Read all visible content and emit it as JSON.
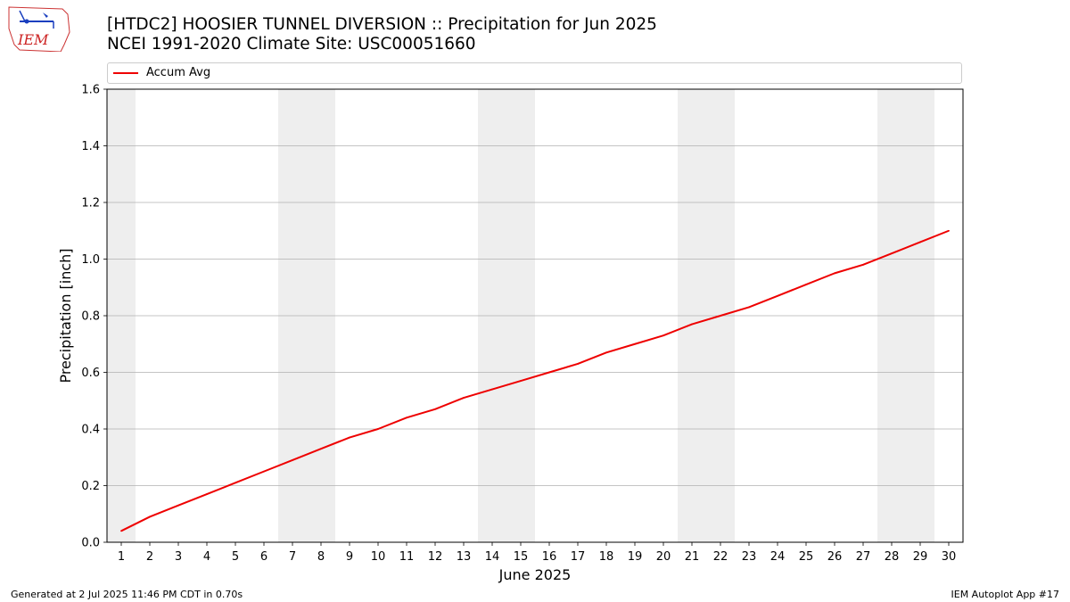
{
  "header": {
    "title_line1": "[HTDC2] HOOSIER TUNNEL DIVERSION :: Precipitation for Jun 2025",
    "title_line2": "NCEI 1991-2020 Climate Site: USC00051660",
    "logo_text": "IEM"
  },
  "footer": {
    "generated": "Generated at 2 Jul 2025 11:46 PM CDT in 0.70s",
    "app": "IEM Autoplot App #17"
  },
  "colors": {
    "line": "#ee0000",
    "weekend_shade": "#eeeeee",
    "grid": "#b0b0b0"
  },
  "chart_data": {
    "type": "line",
    "xlabel": "June 2025",
    "ylabel": "Precipitation [inch]",
    "x": [
      1,
      2,
      3,
      4,
      5,
      6,
      7,
      8,
      9,
      10,
      11,
      12,
      13,
      14,
      15,
      16,
      17,
      18,
      19,
      20,
      21,
      22,
      23,
      24,
      25,
      26,
      27,
      28,
      29,
      30
    ],
    "xlim": [
      0.5,
      30.5
    ],
    "ylim": [
      0,
      1.6
    ],
    "yticks": [
      "0.0",
      "0.2",
      "0.4",
      "0.6",
      "0.8",
      "1.0",
      "1.2",
      "1.4",
      "1.6"
    ],
    "ytick_values": [
      0,
      0.2,
      0.4,
      0.6,
      0.8,
      1.0,
      1.2,
      1.4,
      1.6
    ],
    "xticks": [
      "1",
      "2",
      "3",
      "4",
      "5",
      "6",
      "7",
      "8",
      "9",
      "10",
      "11",
      "12",
      "13",
      "14",
      "15",
      "16",
      "17",
      "18",
      "19",
      "20",
      "21",
      "22",
      "23",
      "24",
      "25",
      "26",
      "27",
      "28",
      "29",
      "30"
    ],
    "shaded_ranges": [
      [
        0.5,
        1.5
      ],
      [
        6.5,
        8.5
      ],
      [
        13.5,
        15.5
      ],
      [
        20.5,
        22.5
      ],
      [
        27.5,
        29.5
      ]
    ],
    "grid": "horizontal",
    "legend_position": "top",
    "series": [
      {
        "name": "Accum Avg",
        "values": [
          0.04,
          0.09,
          0.13,
          0.17,
          0.21,
          0.25,
          0.29,
          0.33,
          0.37,
          0.4,
          0.44,
          0.47,
          0.51,
          0.54,
          0.57,
          0.6,
          0.63,
          0.67,
          0.7,
          0.73,
          0.77,
          0.8,
          0.83,
          0.87,
          0.91,
          0.95,
          0.98,
          1.02,
          1.06,
          1.1
        ]
      }
    ]
  }
}
